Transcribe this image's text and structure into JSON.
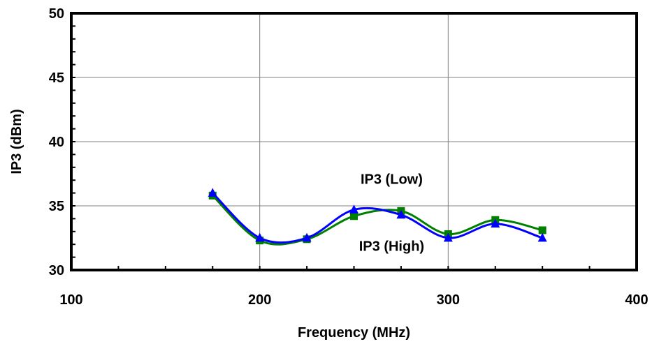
{
  "chart_data": {
    "type": "line",
    "title": "",
    "xlabel": "Frequency (MHz)",
    "ylabel": "IP3 (dBm)",
    "xlim": [
      100,
      400
    ],
    "ylim": [
      30,
      50
    ],
    "x_ticks": [
      "100",
      "200",
      "300",
      "400"
    ],
    "y_ticks": [
      "30",
      "35",
      "40",
      "45",
      "50"
    ],
    "grid": true,
    "x": [
      175,
      200,
      225,
      250,
      275,
      300,
      325,
      350
    ],
    "series": [
      {
        "key": "low",
        "name": "IP3 (Low)",
        "color": "#008000",
        "marker": "square",
        "values": [
          35.8,
          32.3,
          32.4,
          34.2,
          34.6,
          32.8,
          33.9,
          33.1
        ]
      },
      {
        "key": "high",
        "name": "IP3 (High)",
        "color": "#0000ff",
        "marker": "triangle",
        "values": [
          36.0,
          32.5,
          32.5,
          34.7,
          34.3,
          32.5,
          33.6,
          32.5
        ]
      }
    ],
    "annotations": [
      {
        "text": "IP3 (Low)",
        "x": 270,
        "y": 36.7
      },
      {
        "text": "IP3 (High)",
        "x": 270,
        "y": 31.5
      }
    ]
  }
}
